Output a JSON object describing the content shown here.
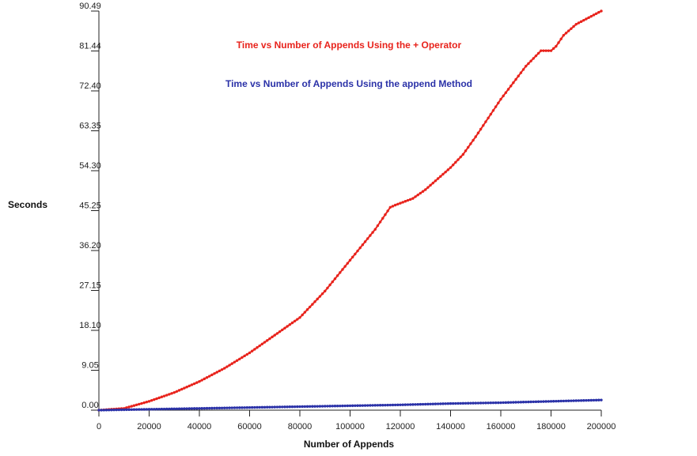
{
  "chart_data": {
    "type": "line",
    "title": "",
    "xlabel": "Number of Appends",
    "ylabel": "Seconds",
    "xlim": [
      0,
      200000
    ],
    "ylim": [
      0,
      90.49
    ],
    "xticks": [
      "0",
      "20000",
      "40000",
      "60000",
      "80000",
      "100000",
      "120000",
      "140000",
      "160000",
      "180000",
      "200000"
    ],
    "yticks": [
      "0.00",
      "9.05",
      "18.10",
      "27.15",
      "36.20",
      "45.25",
      "54.30",
      "63.35",
      "72.40",
      "81.44",
      "90.49"
    ],
    "grid": false,
    "legend": "top-center",
    "colors": {
      "plus_operator": "#e8231c",
      "append_method": "#2b32a8"
    },
    "series": [
      {
        "name": "Time vs Number of Appends Using the + Operator",
        "x": [
          0,
          5000,
          10000,
          20000,
          30000,
          40000,
          50000,
          60000,
          70000,
          80000,
          90000,
          100000,
          110000,
          116000,
          118000,
          125000,
          130000,
          140000,
          145000,
          150000,
          160000,
          170000,
          176000,
          180000,
          182000,
          185000,
          190000,
          195000,
          200000
        ],
        "y": [
          0.0,
          0.2,
          0.4,
          2.0,
          4.0,
          6.5,
          9.5,
          13.0,
          17.0,
          21.0,
          27.0,
          34.0,
          41.0,
          46.0,
          46.5,
          48.0,
          50.0,
          55.0,
          58.0,
          62.0,
          70.5,
          78.0,
          81.5,
          81.5,
          82.5,
          85.0,
          87.5,
          89.0,
          90.5
        ]
      },
      {
        "name": "Time vs Number of Appends Using the append Method",
        "x": [
          0,
          20000,
          40000,
          60000,
          80000,
          100000,
          120000,
          140000,
          160000,
          180000,
          200000
        ],
        "y": [
          0.0,
          0.2,
          0.4,
          0.6,
          0.8,
          1.0,
          1.2,
          1.5,
          1.7,
          2.0,
          2.3
        ]
      }
    ]
  }
}
